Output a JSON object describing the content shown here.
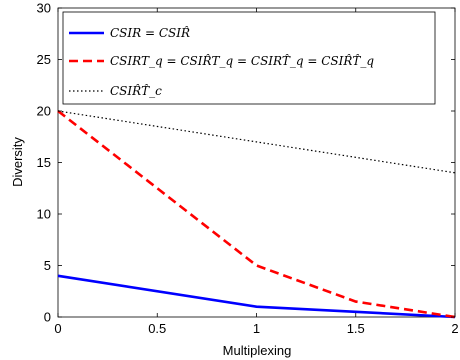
{
  "chart_data": {
    "type": "line",
    "xlabel": "Multiplexing",
    "ylabel": "Diversity",
    "xlim": [
      0,
      2
    ],
    "ylim": [
      0,
      30
    ],
    "xticks": [
      0,
      0.5,
      1,
      1.5,
      2
    ],
    "yticks": [
      0,
      5,
      10,
      15,
      20,
      25,
      30
    ],
    "xtick_labels": [
      "0",
      "0.5",
      "1",
      "1.5",
      "2"
    ],
    "ytick_labels": [
      "0",
      "5",
      "10",
      "15",
      "20",
      "25",
      "30"
    ],
    "grid": false,
    "legend_position": "top-left",
    "series": [
      {
        "name": "CSIR = CSIR̂",
        "color": "#0000ff",
        "style": "solid",
        "x": [
          0,
          1,
          2
        ],
        "y": [
          4,
          1,
          0
        ]
      },
      {
        "name": "CSIRT_q = CSIR̂T_q = CSIRT̂_q = CSIR̂T̂_q",
        "color": "#ff0000",
        "style": "dashed",
        "x": [
          0,
          1,
          1.5,
          2
        ],
        "y": [
          20,
          5,
          1.5,
          0
        ]
      },
      {
        "name": "CSIR̂T̂_c",
        "color": "#000000",
        "style": "dotted",
        "x": [
          0,
          2
        ],
        "y": [
          20,
          14
        ]
      }
    ]
  }
}
